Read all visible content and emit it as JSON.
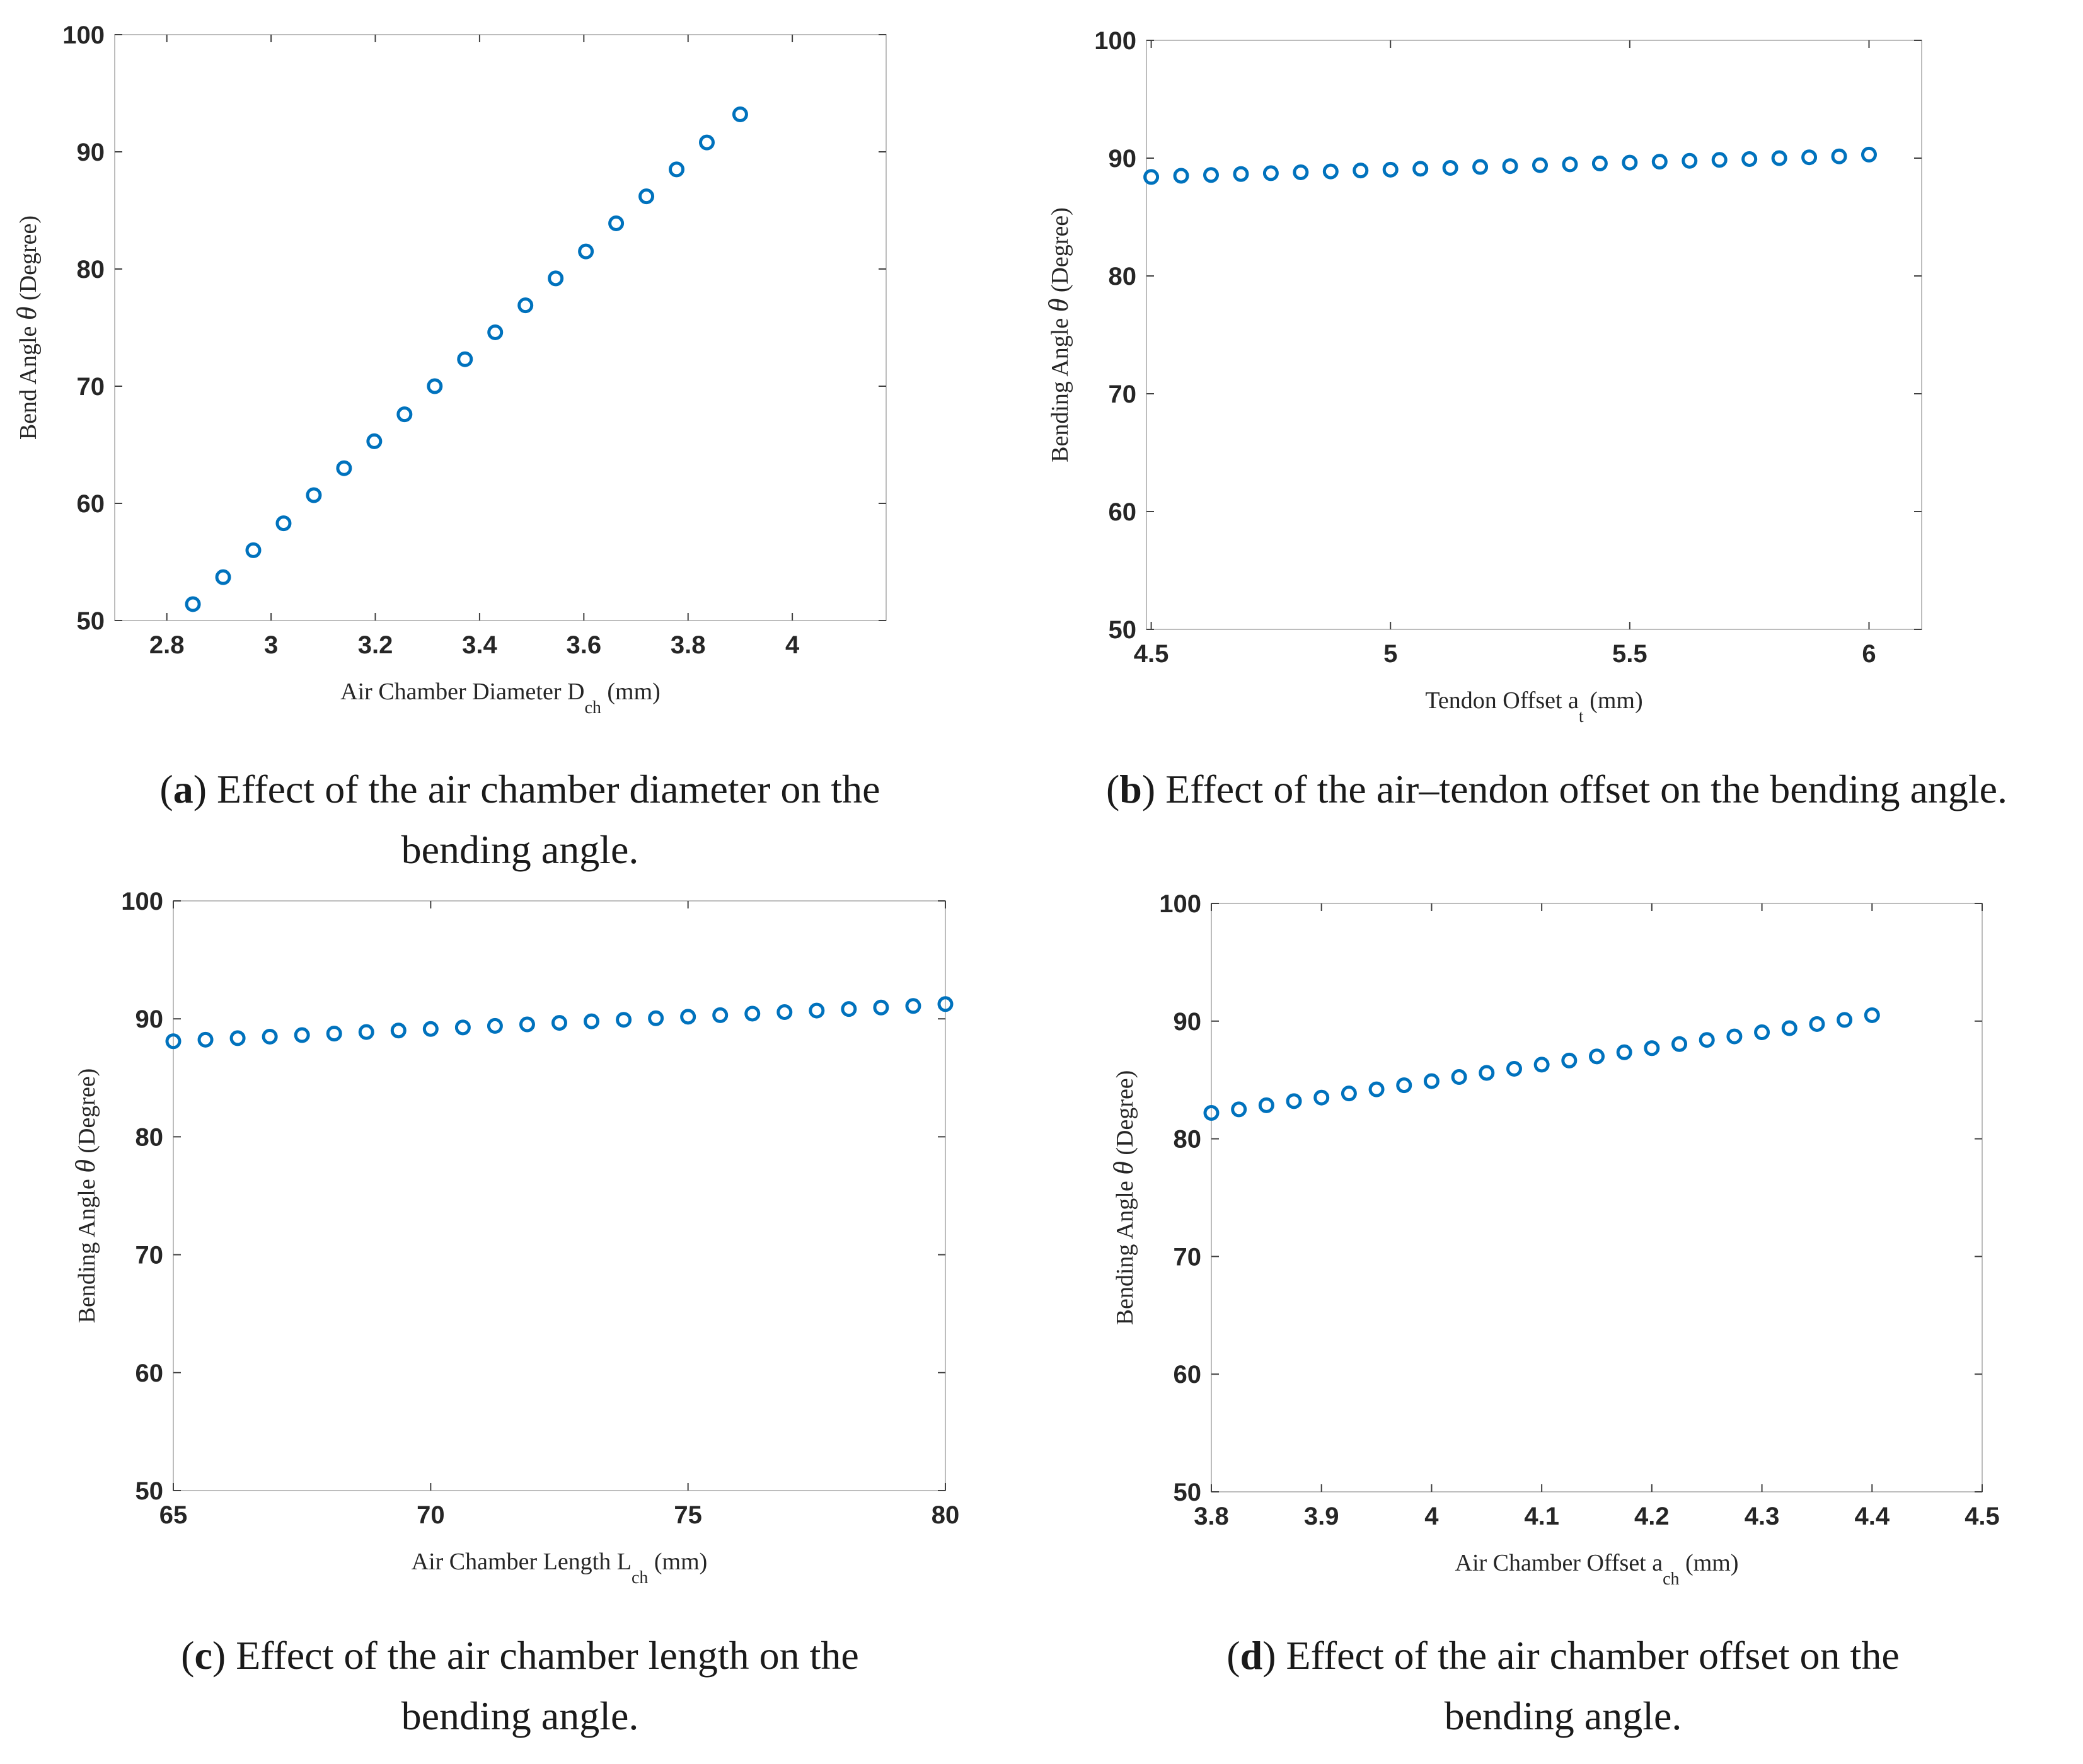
{
  "colors": {
    "marker": "#0072bd",
    "frame": "#bdbdbd",
    "text": "#262626"
  },
  "chart_data": [
    {
      "id": "a",
      "type": "scatter",
      "xlabel": {
        "main": "Air Chamber Diameter D",
        "sub": "ch",
        "unit": "(mm)"
      },
      "ylabel": {
        "main": "Bend Angle ",
        "symbol": "θ",
        "unit": " (Degree)"
      },
      "xlim": [
        2.7,
        4.18
      ],
      "ylim": [
        50,
        100
      ],
      "xticks": [
        2.8,
        3,
        3.2,
        3.4,
        3.6,
        3.8,
        4
      ],
      "xtick_labels": [
        "2.8",
        "3",
        "3.2",
        "3.4",
        "3.6",
        "3.8",
        "4"
      ],
      "yticks": [
        50,
        60,
        70,
        80,
        90,
        100
      ],
      "ytick_labels": [
        "50",
        "60",
        "70",
        "80",
        "90",
        "100"
      ],
      "x": [
        2.85,
        2.908,
        2.966,
        3.024,
        3.082,
        3.14,
        3.198,
        3.256,
        3.314,
        3.372,
        3.43,
        3.488,
        3.546,
        3.604,
        3.662,
        3.72,
        3.778,
        3.836,
        3.9
      ],
      "y": [
        51.4,
        53.7,
        56.0,
        58.3,
        60.7,
        63.0,
        65.3,
        67.6,
        70.0,
        72.3,
        74.6,
        76.9,
        79.2,
        81.5,
        83.9,
        86.2,
        88.5,
        90.8,
        93.2
      ],
      "caption": {
        "label": "a",
        "text": " Effect of the air chamber diameter on the",
        "line2": "bending angle."
      }
    },
    {
      "id": "b",
      "type": "scatter",
      "xlabel": {
        "main": "Tendon Offset a",
        "sub": "t",
        "unit": "(mm)"
      },
      "ylabel": {
        "main": "Bending Angle ",
        "symbol": "θ",
        "unit": " (Degree)"
      },
      "xlim": [
        4.49,
        6.11
      ],
      "ylim": [
        50,
        100
      ],
      "xticks": [
        4.5,
        5,
        5.5,
        6
      ],
      "xtick_labels": [
        "4.5",
        "5",
        "5.5",
        "6"
      ],
      "yticks": [
        50,
        60,
        70,
        80,
        90,
        100
      ],
      "ytick_labels": [
        "50",
        "60",
        "70",
        "80",
        "90",
        "100"
      ],
      "x": [
        4.5,
        4.5625,
        4.625,
        4.6875,
        4.75,
        4.8125,
        4.875,
        4.9375,
        5.0,
        5.0625,
        5.125,
        5.1875,
        5.25,
        5.3125,
        5.375,
        5.4375,
        5.5,
        5.5625,
        5.625,
        5.6875,
        5.75,
        5.8125,
        5.875,
        5.9375,
        6.0
      ],
      "y": [
        88.4,
        88.5,
        88.57,
        88.65,
        88.72,
        88.8,
        88.87,
        88.95,
        89.02,
        89.1,
        89.17,
        89.25,
        89.32,
        89.4,
        89.47,
        89.55,
        89.62,
        89.7,
        89.77,
        89.85,
        89.92,
        90.0,
        90.07,
        90.15,
        90.3
      ],
      "caption": {
        "label": "b",
        "text": " Effect of the air–tendon offset on the bending angle.",
        "line2": ""
      }
    },
    {
      "id": "c",
      "type": "scatter",
      "xlabel": {
        "main": "Air Chamber Length L",
        "sub": "ch",
        "unit": "(mm)"
      },
      "ylabel": {
        "main": "Bending Angle ",
        "symbol": "θ",
        "unit": " (Degree)"
      },
      "xlim": [
        65,
        80
      ],
      "ylim": [
        50,
        100
      ],
      "xticks": [
        65,
        70,
        75,
        80
      ],
      "xtick_labels": [
        "65",
        "70",
        "75",
        "80"
      ],
      "yticks": [
        50,
        60,
        70,
        80,
        90,
        100
      ],
      "ytick_labels": [
        "50",
        "60",
        "70",
        "80",
        "90",
        "100"
      ],
      "x": [
        65.0,
        65.625,
        66.25,
        66.875,
        67.5,
        68.125,
        68.75,
        69.375,
        70.0,
        70.625,
        71.25,
        71.875,
        72.5,
        73.125,
        73.75,
        74.375,
        75.0,
        75.625,
        76.25,
        76.875,
        77.5,
        78.125,
        78.75,
        79.375,
        80.0
      ],
      "y": [
        88.1,
        88.23,
        88.36,
        88.49,
        88.62,
        88.75,
        88.88,
        89.01,
        89.14,
        89.27,
        89.4,
        89.53,
        89.66,
        89.79,
        89.92,
        90.05,
        90.18,
        90.31,
        90.44,
        90.57,
        90.7,
        90.83,
        90.96,
        91.09,
        91.25
      ],
      "caption": {
        "label": "c",
        "text": " Effect of the air chamber length on the",
        "line2": "bending angle."
      }
    },
    {
      "id": "d",
      "type": "scatter",
      "xlabel": {
        "main": "Air Chamber Offset a",
        "sub": "ch",
        "unit": "(mm)"
      },
      "ylabel": {
        "main": "Bending Angle ",
        "symbol": "θ",
        "unit": " (Degree)"
      },
      "xlim": [
        3.8,
        4.5
      ],
      "ylim": [
        50,
        100
      ],
      "xticks": [
        3.8,
        3.9,
        4,
        4.1,
        4.2,
        4.3,
        4.4,
        4.5
      ],
      "xtick_labels": [
        "3.8",
        "3.9",
        "4",
        "4.1",
        "4.2",
        "4.3",
        "4.4",
        "4.5"
      ],
      "yticks": [
        50,
        60,
        70,
        80,
        90,
        100
      ],
      "ytick_labels": [
        "50",
        "60",
        "70",
        "80",
        "90",
        "100"
      ],
      "x": [
        3.8,
        3.825,
        3.85,
        3.875,
        3.9,
        3.925,
        3.95,
        3.975,
        4.0,
        4.025,
        4.05,
        4.075,
        4.1,
        4.125,
        4.15,
        4.175,
        4.2,
        4.225,
        4.25,
        4.275,
        4.3,
        4.325,
        4.35,
        4.375,
        4.4
      ],
      "y": [
        82.2,
        82.5,
        82.85,
        83.2,
        83.5,
        83.85,
        84.2,
        84.55,
        84.9,
        85.25,
        85.6,
        85.95,
        86.3,
        86.65,
        87.0,
        87.35,
        87.7,
        88.05,
        88.4,
        88.7,
        89.05,
        89.4,
        89.75,
        90.1,
        90.5
      ],
      "caption": {
        "label": "d",
        "text": " Effect of the air chamber offset on the",
        "line2": "bending angle."
      }
    }
  ]
}
